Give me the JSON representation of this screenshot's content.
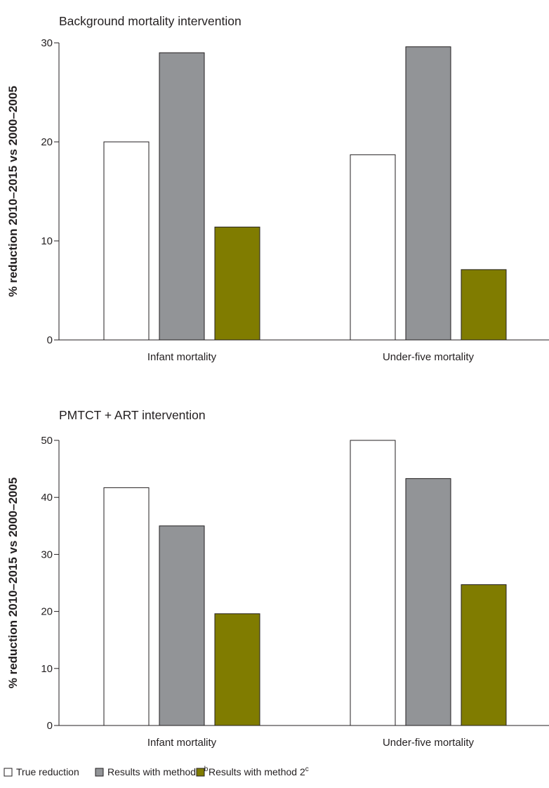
{
  "chart_data": [
    {
      "type": "bar",
      "title": "Background mortality intervention",
      "ylabel": "% reduction 2010–2015 vs 2000–2005",
      "xlabel": "",
      "ylim": [
        0,
        30
      ],
      "yticks": [
        0,
        10,
        20,
        30
      ],
      "categories": [
        "Infant mortality",
        "Under-five mortality"
      ],
      "series": [
        {
          "name": "True reduction",
          "values": [
            20.0,
            18.7
          ]
        },
        {
          "name": "Results with method 1",
          "values": [
            29.0,
            29.6
          ]
        },
        {
          "name": "Results with method 2",
          "values": [
            11.4,
            7.1
          ]
        }
      ]
    },
    {
      "type": "bar",
      "title": "PMTCT + ART intervention",
      "ylabel": "% reduction 2010–2015 vs 2000–2005",
      "xlabel": "",
      "ylim": [
        0,
        50
      ],
      "yticks": [
        0,
        10,
        20,
        30,
        40,
        50
      ],
      "categories": [
        "Infant mortality",
        "Under-five mortality"
      ],
      "series": [
        {
          "name": "True reduction",
          "values": [
            41.7,
            50.0
          ]
        },
        {
          "name": "Results with method 1",
          "values": [
            35.0,
            43.3
          ]
        },
        {
          "name": "Results with method 2",
          "values": [
            19.6,
            24.7
          ]
        }
      ]
    }
  ],
  "legend": {
    "position": "bottom-left",
    "items": [
      {
        "label": "True reduction",
        "superscript": "",
        "color": "#ffffff"
      },
      {
        "label": "Results with method 1",
        "superscript": "b",
        "color": "#929497"
      },
      {
        "label": "Results with method 2",
        "superscript": "c",
        "color": "#807c00"
      }
    ]
  },
  "colors": {
    "true_reduction": "#ffffff",
    "method1": "#929497",
    "method2": "#807c00",
    "axis": "#231f20"
  }
}
